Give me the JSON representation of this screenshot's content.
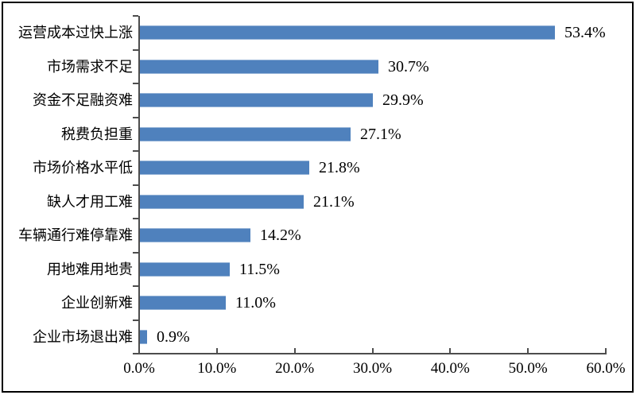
{
  "chart_data": {
    "type": "bar",
    "orientation": "horizontal",
    "title": "",
    "categories": [
      "运营成本过快上涨",
      "市场需求不足",
      "资金不足融资难",
      "税费负担重",
      "市场价格水平低",
      "缺人才用工难",
      "车辆通行难停靠难",
      "用地难用地贵",
      "企业创新难",
      "企业市场退出难"
    ],
    "values": [
      53.4,
      30.7,
      29.9,
      27.1,
      21.8,
      21.1,
      14.2,
      11.5,
      11.0,
      0.9
    ],
    "value_labels": [
      "53.4%",
      "30.7%",
      "29.9%",
      "27.1%",
      "21.8%",
      "21.1%",
      "14.2%",
      "11.5%",
      "11.0%",
      "0.9%"
    ],
    "xlim": [
      0,
      60
    ],
    "x_tick_step": 10,
    "x_tick_labels": [
      "0.0%",
      "10.0%",
      "20.0%",
      "30.0%",
      "40.0%",
      "50.0%",
      "60.0%"
    ],
    "grid": false,
    "legend": false,
    "bar_color": "#4f81bd",
    "bar_border_color": "#95b3d7",
    "axis_color": "#4d4d4d",
    "text_color": "#000000",
    "background_color": "#ffffff",
    "frame_border_color": "#000000"
  }
}
